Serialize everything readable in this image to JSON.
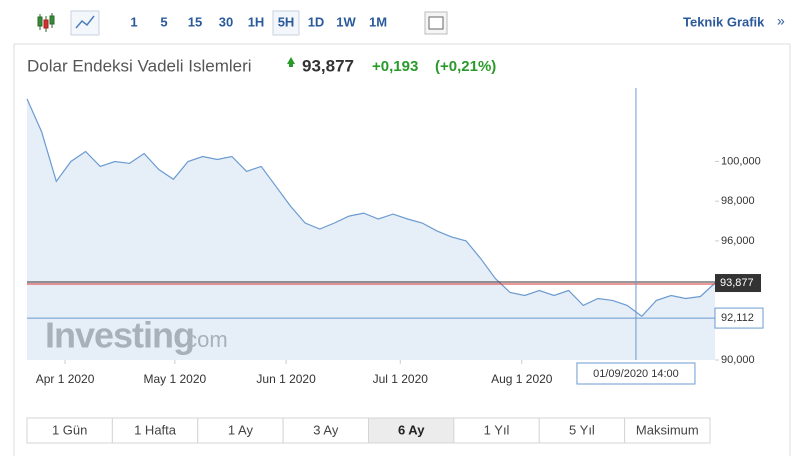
{
  "toolbar": {
    "intervals": [
      "1",
      "5",
      "15",
      "30",
      "1H",
      "5H",
      "1D",
      "1W",
      "1M"
    ],
    "link": "Teknik Grafik",
    "link_arrow": "»"
  },
  "chart_data": {
    "type": "line",
    "title": "Dolar Endeksi Vadeli Islemleri",
    "change": "+0,193",
    "change_pct": "(+0,21%)",
    "color": "#6b9bd1",
    "values": [
      103.15,
      101.5,
      99.0,
      100.0,
      100.5,
      99.75,
      100.0,
      99.9,
      100.4,
      99.6,
      99.1,
      100.0,
      100.25,
      100.1,
      100.25,
      99.5,
      99.75,
      98.75,
      97.75,
      96.9,
      96.6,
      96.9,
      97.25,
      97.4,
      97.1,
      97.35,
      97.1,
      96.9,
      96.5,
      96.2,
      96.0,
      95.1,
      94.1,
      93.4,
      93.25,
      93.5,
      93.25,
      93.5,
      92.75,
      93.1,
      93.0,
      92.75,
      92.2,
      93.0,
      93.25,
      93.1,
      93.2,
      93.877
    ],
    "xlim": [
      0,
      47
    ],
    "xticks": [
      {
        "value": 2.6,
        "label": "Apr 1 2020"
      },
      {
        "value": 10.1,
        "label": "May 1 2020"
      },
      {
        "value": 17.7,
        "label": "Jun 1 2020"
      },
      {
        "value": 25.5,
        "label": "Jul 1 2020"
      },
      {
        "value": 33.8,
        "label": "Aug 1 2020"
      }
    ],
    "ylim": [
      90,
      103.7
    ],
    "yticks": [
      {
        "value": 90,
        "label": "90,000"
      },
      {
        "value": 96,
        "label": "96,000"
      },
      {
        "value": 98,
        "label": "98,000"
      },
      {
        "value": 100,
        "label": "100,000"
      }
    ],
    "price_line": {
      "value": 93.877,
      "label": "93,877"
    },
    "crosshair": {
      "x": 41.6,
      "x_label": "01/09/2020 14:00",
      "y": 92.112,
      "y_label": "92,112"
    },
    "watermark": "Investing",
    "watermark_suffix": ".com"
  },
  "range_buttons": [
    "1 Gün",
    "1 Hafta",
    "1 Ay",
    "3 Ay",
    "6 Ay",
    "1 Yıl",
    "5 Yıl",
    "Maksimum"
  ]
}
